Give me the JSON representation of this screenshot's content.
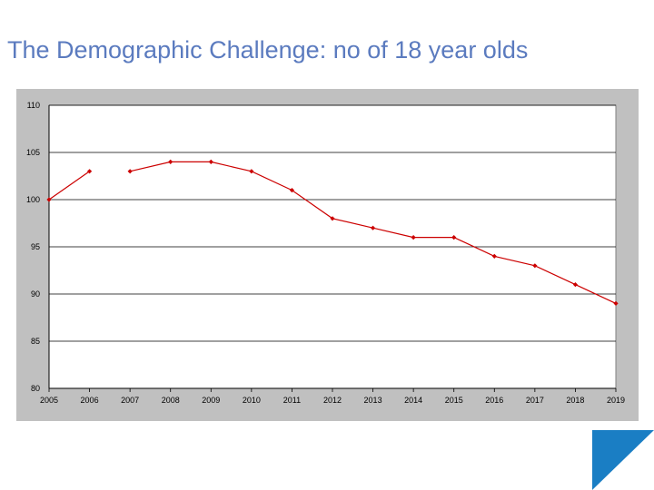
{
  "slide": {
    "title": "The Demographic Challenge: no of 18 year olds"
  },
  "colors": {
    "title": "#5b7bbf",
    "frame": "#c0c0c0",
    "plot_area": "#ffffff",
    "series": "#cc0000",
    "corner_triangle": "#1a7ec4"
  },
  "chart_data": {
    "type": "line",
    "title": "",
    "xlabel": "",
    "ylabel": "",
    "x": [
      "2005",
      "2006",
      "2007",
      "2008",
      "2009",
      "2010",
      "2011",
      "2012",
      "2013",
      "2014",
      "2015",
      "2016",
      "2017",
      "2018",
      "2019"
    ],
    "series": [
      {
        "values": [
          100,
          103,
          null,
          104,
          104,
          103,
          101,
          98,
          97,
          96,
          96,
          94,
          93,
          91,
          89
        ],
        "points": [
          100,
          103,
          103,
          104,
          104,
          103,
          101,
          98,
          97,
          96,
          96,
          94,
          93,
          91,
          89
        ],
        "segment_gap_after_index": 1
      }
    ],
    "yticks": [
      "80",
      "85",
      "90",
      "95",
      "100",
      "105",
      "110"
    ],
    "ylim": [
      80,
      110
    ],
    "grid": true,
    "legend": "none"
  }
}
